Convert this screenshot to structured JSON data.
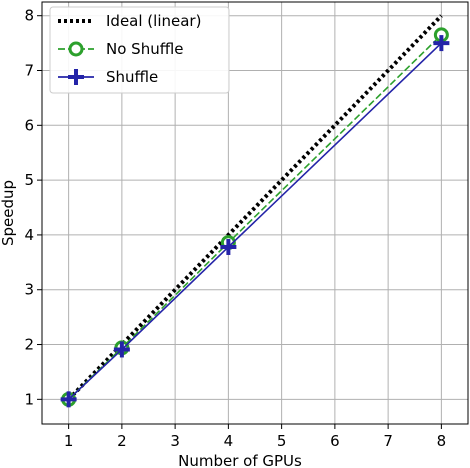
{
  "chart_data": {
    "type": "line",
    "xlabel": "Number of GPUs",
    "ylabel": "Speedup",
    "x": [
      1,
      2,
      4,
      8
    ],
    "xlim": [
      0.5,
      8.5
    ],
    "ylim": [
      0.55,
      8.25
    ],
    "xticks": [
      1,
      2,
      3,
      4,
      5,
      6,
      7,
      8
    ],
    "yticks": [
      1,
      2,
      3,
      4,
      5,
      6,
      7,
      8
    ],
    "grid": true,
    "legend_position": "top-left",
    "series": [
      {
        "name": "Ideal (linear)",
        "x": [
          1,
          8
        ],
        "values": [
          1,
          8
        ],
        "color": "#000000",
        "style": "dotted",
        "marker": "none"
      },
      {
        "name": "No Shuffle",
        "x": [
          1,
          2,
          4,
          8
        ],
        "values": [
          1.0,
          1.94,
          3.86,
          7.65
        ],
        "color": "#2ca02c",
        "style": "dashed",
        "marker": "circle"
      },
      {
        "name": "Shuffle",
        "x": [
          1,
          2,
          4,
          8
        ],
        "values": [
          1.0,
          1.91,
          3.78,
          7.5
        ],
        "color": "#2424a8",
        "style": "solid",
        "marker": "plus"
      }
    ]
  }
}
